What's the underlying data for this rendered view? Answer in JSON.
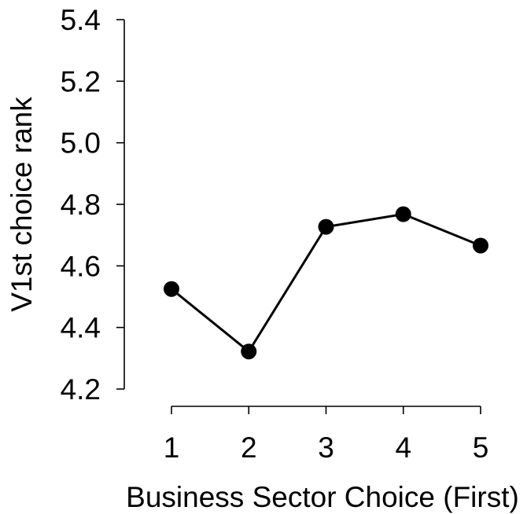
{
  "chart_data": {
    "type": "line",
    "title": "",
    "xlabel": "Business Sector Choice (First)",
    "ylabel": "V1st choice rank",
    "x": [
      1,
      2,
      3,
      4,
      5
    ],
    "x_tick_labels": [
      "1",
      "2",
      "3",
      "4",
      "5"
    ],
    "y_ticks": [
      4.2,
      4.4,
      4.6,
      4.8,
      5.0,
      5.2,
      5.4
    ],
    "y_tick_labels": [
      "4.2",
      "4.4",
      "4.6",
      "4.8",
      "5.0",
      "5.2",
      "5.4"
    ],
    "ylim": [
      4.2,
      5.4
    ],
    "xlim": [
      1,
      5
    ],
    "grid": false,
    "series": [
      {
        "values": [
          4.525,
          4.322,
          4.727,
          4.768,
          4.666
        ],
        "color": "#000000",
        "marker": "filled-circle"
      }
    ]
  }
}
